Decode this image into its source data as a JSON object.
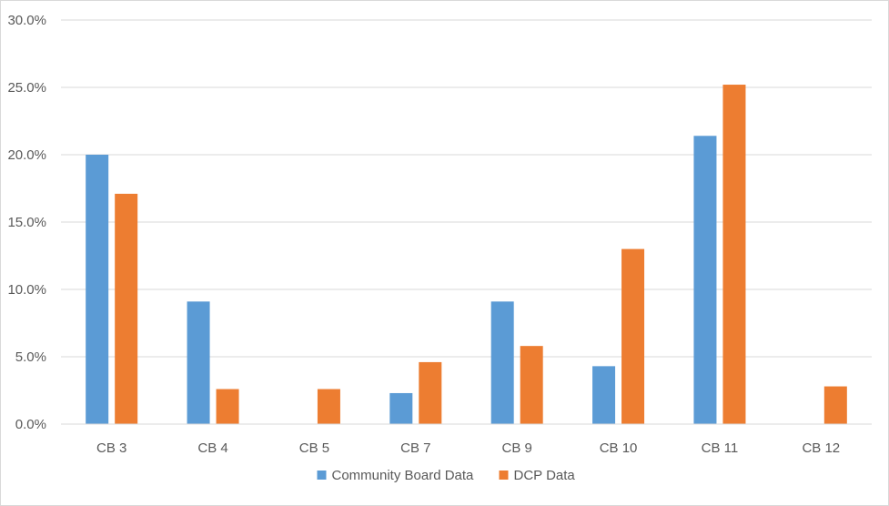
{
  "chart_data": {
    "type": "bar",
    "title": "",
    "xlabel": "",
    "ylabel": "",
    "categories": [
      "CB 3",
      "CB 4",
      "CB 5",
      "CB 7",
      "CB 9",
      "CB 10",
      "CB 11",
      "CB 12"
    ],
    "series": [
      {
        "name": "Community Board Data",
        "color": "#5b9bd5",
        "values": [
          20.0,
          9.1,
          0.0,
          2.3,
          9.1,
          4.3,
          21.4,
          0.0
        ]
      },
      {
        "name": "DCP Data",
        "color": "#ed7d31",
        "values": [
          17.1,
          2.6,
          2.6,
          4.6,
          5.8,
          13.0,
          25.2,
          2.8
        ]
      }
    ],
    "ylim": [
      0,
      30
    ],
    "yticks": [
      "0.0%",
      "5.0%",
      "10.0%",
      "15.0%",
      "20.0%",
      "25.0%",
      "30.0%"
    ],
    "ytick_values": [
      0,
      5,
      10,
      15,
      20,
      25,
      30
    ],
    "grid": true,
    "legend_position": "bottom"
  }
}
